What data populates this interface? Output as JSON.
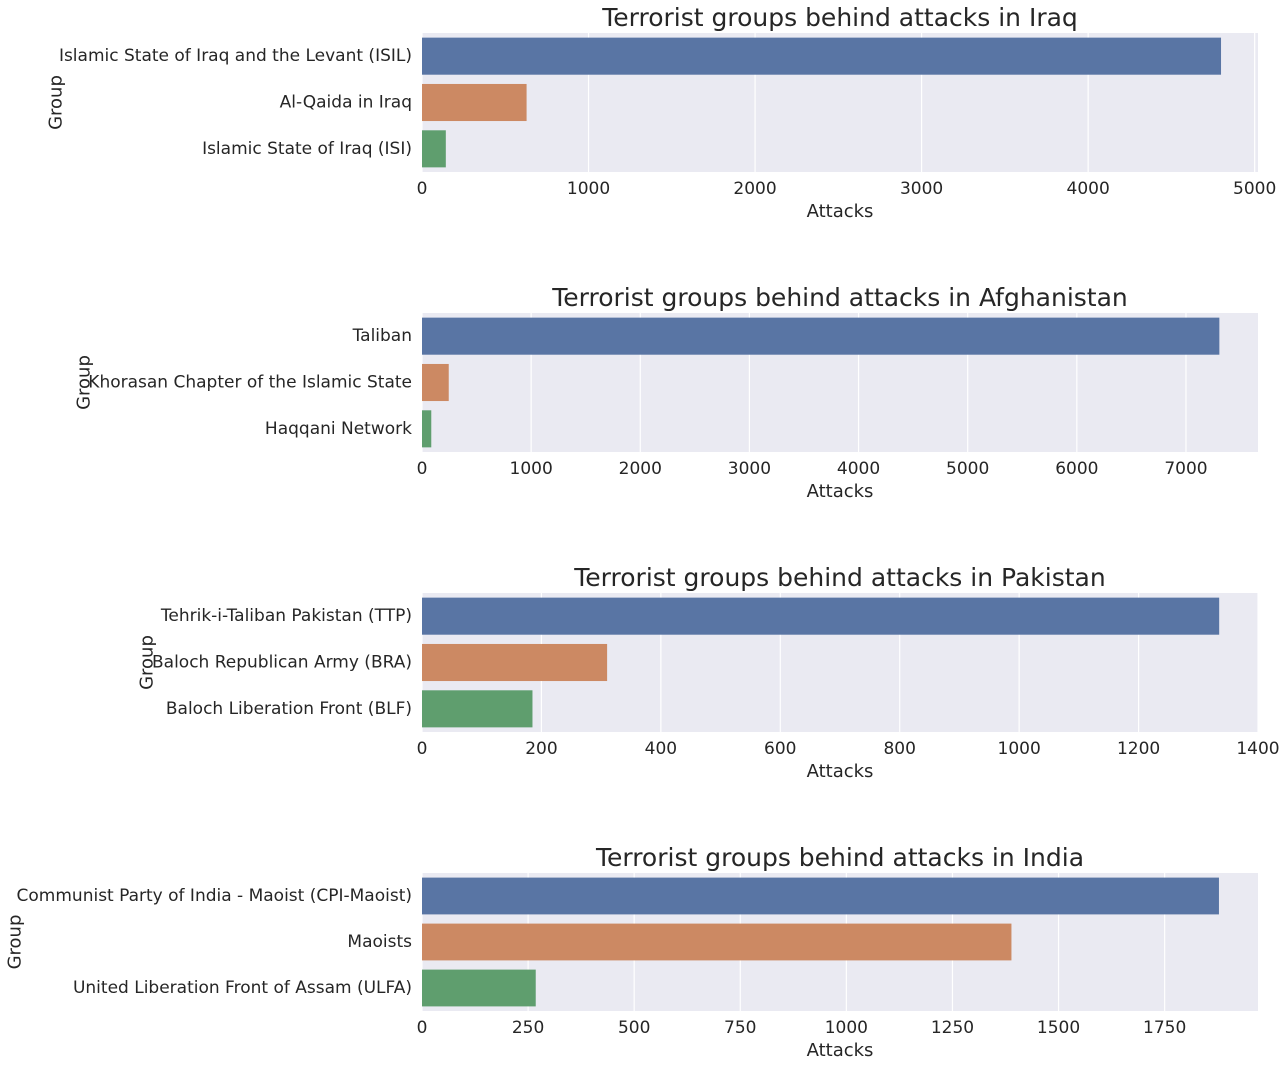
{
  "chart_data": [
    {
      "type": "bar",
      "orientation": "horizontal",
      "title": "Terrorist groups behind attacks in Iraq",
      "xlabel": "Attacks",
      "ylabel": "Group",
      "xlim": [
        0,
        5020
      ],
      "xticks": [
        0,
        1000,
        2000,
        3000,
        4000,
        5000
      ],
      "grid": true,
      "categories": [
        "Islamic State of Iraq and the Levant (ISIL)",
        "Al-Qaida in Iraq",
        "Islamic State of Iraq (ISI)"
      ],
      "values": [
        4798,
        628,
        143
      ],
      "colors": [
        "#5975a4",
        "#cc8963",
        "#5f9e6e"
      ]
    },
    {
      "type": "bar",
      "orientation": "horizontal",
      "title": "Terrorist groups behind attacks in Afghanistan",
      "xlabel": "Attacks",
      "ylabel": "Group",
      "xlim": [
        0,
        7660
      ],
      "xticks": [
        0,
        1000,
        2000,
        3000,
        4000,
        5000,
        6000,
        7000
      ],
      "grid": true,
      "categories": [
        "Taliban",
        "Khorasan Chapter of the Islamic State",
        "Haqqani Network"
      ],
      "values": [
        7306,
        245,
        85
      ],
      "colors": [
        "#5975a4",
        "#cc8963",
        "#5f9e6e"
      ]
    },
    {
      "type": "bar",
      "orientation": "horizontal",
      "title": "Terrorist groups behind attacks in Pakistan",
      "xlabel": "Attacks",
      "ylabel": "Group",
      "xlim": [
        0,
        1400
      ],
      "xticks": [
        0,
        200,
        400,
        600,
        800,
        1000,
        1200,
        1400
      ],
      "grid": true,
      "categories": [
        "Tehrik-i-Taliban Pakistan (TTP)",
        "Baloch Republican Army (BRA)",
        "Baloch Liberation Front (BLF)"
      ],
      "values": [
        1335,
        310,
        185
      ],
      "colors": [
        "#5975a4",
        "#cc8963",
        "#5f9e6e"
      ]
    },
    {
      "type": "bar",
      "orientation": "horizontal",
      "title": "Terrorist groups behind attacks in India",
      "xlabel": "Attacks",
      "ylabel": "Group",
      "xlim": [
        0,
        1970
      ],
      "xticks": [
        0,
        250,
        500,
        750,
        1000,
        1250,
        1500,
        1750
      ],
      "grid": true,
      "categories": [
        "Communist Party of India - Maoist (CPI-Maoist)",
        "Maoists",
        "United Liberation Front of Assam (ULFA)"
      ],
      "values": [
        1878,
        1389,
        268
      ],
      "colors": [
        "#5975a4",
        "#cc8963",
        "#5f9e6e"
      ]
    }
  ]
}
